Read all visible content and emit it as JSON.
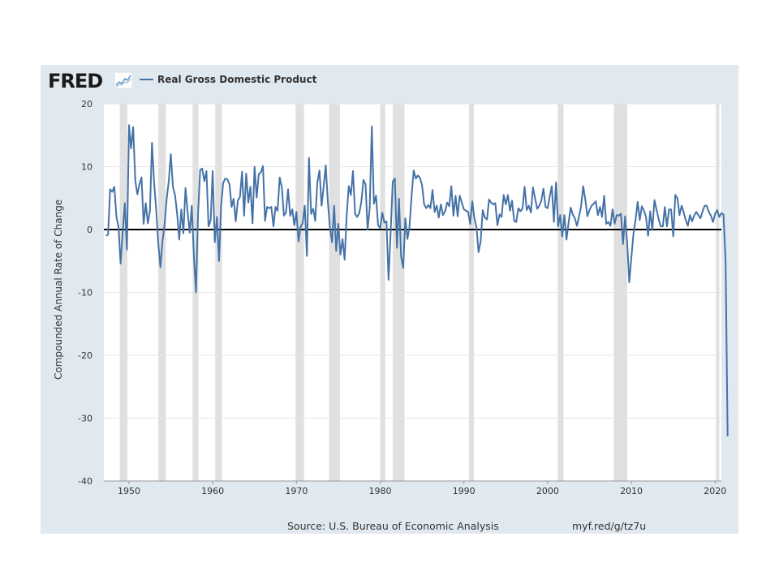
{
  "header": {
    "logo_text": "FRED",
    "logo_icon": "fred-chart-icon"
  },
  "footer": {
    "source": "Source: U.S. Bureau of Economic Analysis",
    "link": "myf.red/g/tz7u"
  },
  "colors": {
    "panel": "#e1e9f0",
    "line": "#4572a7",
    "recession": "#e0e0e0",
    "zero_line": "#000000"
  },
  "chart_data": {
    "type": "line",
    "title": "",
    "ylabel": "Compounded Annual Rate of Change",
    "xlabel": "",
    "xlim": [
      1947.0,
      2020.75
    ],
    "ylim": [
      -40,
      20
    ],
    "yticks": [
      20,
      10,
      0,
      -10,
      -20,
      -30,
      -40
    ],
    "xticks": [
      1950,
      1960,
      1970,
      1980,
      1990,
      2000,
      2010,
      2020
    ],
    "grid": true,
    "legend": "top-left",
    "recessions": [
      [
        1948.9,
        1949.8
      ],
      [
        1953.5,
        1954.4
      ],
      [
        1957.6,
        1958.3
      ],
      [
        1960.3,
        1961.1
      ],
      [
        1969.9,
        1970.9
      ],
      [
        1973.9,
        1975.2
      ],
      [
        1980.0,
        1980.6
      ],
      [
        1981.5,
        1982.9
      ],
      [
        1990.6,
        1991.2
      ],
      [
        2001.2,
        2001.9
      ],
      [
        2007.9,
        2009.5
      ],
      [
        2020.1,
        2020.5
      ]
    ],
    "series": [
      {
        "name": "Real Gross Domestic Product",
        "start": 1947.25,
        "step": 0.25,
        "values": [
          -1.0,
          -0.8,
          6.4,
          6.0,
          6.8,
          2.0,
          0.4,
          -5.4,
          -0.5,
          4.2,
          -3.2,
          16.6,
          12.9,
          16.3,
          7.8,
          5.6,
          7.2,
          8.3,
          0.9,
          4.2,
          1.0,
          3.0,
          13.8,
          7.5,
          3.2,
          -2.3,
          -6.0,
          -1.9,
          0.8,
          4.9,
          7.7,
          12.0,
          6.8,
          5.5,
          2.5,
          -1.6,
          3.2,
          -0.6,
          6.6,
          2.8,
          -0.5,
          3.8,
          -4.2,
          -10.0,
          2.6,
          9.5,
          9.7,
          7.7,
          9.3,
          0.5,
          1.5,
          9.3,
          -2.0,
          2.0,
          -5.0,
          3.8,
          7.4,
          8.1,
          8.0,
          7.2,
          3.6,
          4.9,
          1.3,
          4.6,
          5.2,
          9.2,
          2.2,
          8.9,
          4.3,
          6.8,
          1.0,
          10.0,
          5.1,
          8.8,
          9.1,
          10.1,
          1.4,
          3.6,
          3.4,
          3.6,
          0.5,
          3.6,
          3.0,
          8.3,
          6.7,
          2.2,
          2.7,
          6.4,
          2.2,
          3.2,
          0.7,
          2.8,
          -1.9,
          0.4,
          1.1,
          3.8,
          -4.2,
          11.4,
          2.5,
          3.3,
          1.4,
          7.5,
          9.4,
          3.8,
          6.9,
          10.2,
          4.5,
          0.2,
          -2.0,
          3.8,
          -3.4,
          0.9,
          -4.0,
          -1.5,
          -4.8,
          2.2,
          6.9,
          5.5,
          9.3,
          2.5,
          2.0,
          2.6,
          4.4,
          7.9,
          7.2,
          0.0,
          3.4,
          16.4,
          4.1,
          5.4,
          0.7,
          0.2,
          2.7,
          1.1,
          1.3,
          -8.0,
          -0.5,
          7.6,
          8.1,
          -2.9,
          4.9,
          -4.3,
          -6.1,
          1.8,
          -1.5,
          0.4,
          5.3,
          9.4,
          8.1,
          8.6,
          8.2,
          7.1,
          4.0,
          3.4,
          3.9,
          3.4,
          6.3,
          2.8,
          3.8,
          1.9,
          4.0,
          2.3,
          2.9,
          4.3,
          3.7,
          6.9,
          2.2,
          5.4,
          2.1,
          5.4,
          4.3,
          3.2,
          3.0,
          2.8,
          0.9,
          4.5,
          1.8,
          0.3,
          -3.6,
          -1.9,
          3.1,
          1.9,
          1.6,
          4.8,
          4.3,
          4.0,
          4.2,
          0.7,
          2.4,
          2.0,
          5.5,
          4.0,
          5.5,
          3.0,
          4.6,
          1.4,
          1.2,
          3.4,
          2.9,
          3.3,
          6.8,
          3.1,
          3.8,
          2.7,
          6.7,
          5.0,
          3.3,
          3.8,
          4.6,
          6.5,
          3.6,
          3.4,
          5.3,
          6.9,
          1.2,
          7.5,
          0.5,
          2.3,
          -1.1,
          2.3,
          -1.6,
          1.1,
          3.5,
          2.4,
          1.8,
          0.6,
          2.1,
          3.8,
          6.9,
          4.8,
          2.1,
          3.1,
          3.8,
          4.1,
          4.5,
          2.3,
          3.6,
          2.0,
          5.4,
          0.9,
          1.2,
          0.6,
          3.2,
          0.9,
          2.3,
          2.2,
          2.5,
          -2.3,
          2.1,
          -2.1,
          -8.4,
          -4.4,
          -0.6,
          1.5,
          4.4,
          1.5,
          3.7,
          3.0,
          2.0,
          -1.0,
          2.9,
          -0.1,
          4.7,
          3.2,
          1.7,
          0.5,
          0.5,
          3.6,
          0.5,
          3.2,
          3.2,
          -1.1,
          5.5,
          5.0,
          2.3,
          3.8,
          2.7,
          1.5,
          0.6,
          2.3,
          1.3,
          2.2,
          2.8,
          2.3,
          1.8,
          2.9,
          3.8,
          3.8,
          2.8,
          2.2,
          1.2,
          2.5,
          3.1,
          2.0,
          2.6,
          2.4,
          -5.0,
          -32.9
        ]
      }
    ]
  }
}
